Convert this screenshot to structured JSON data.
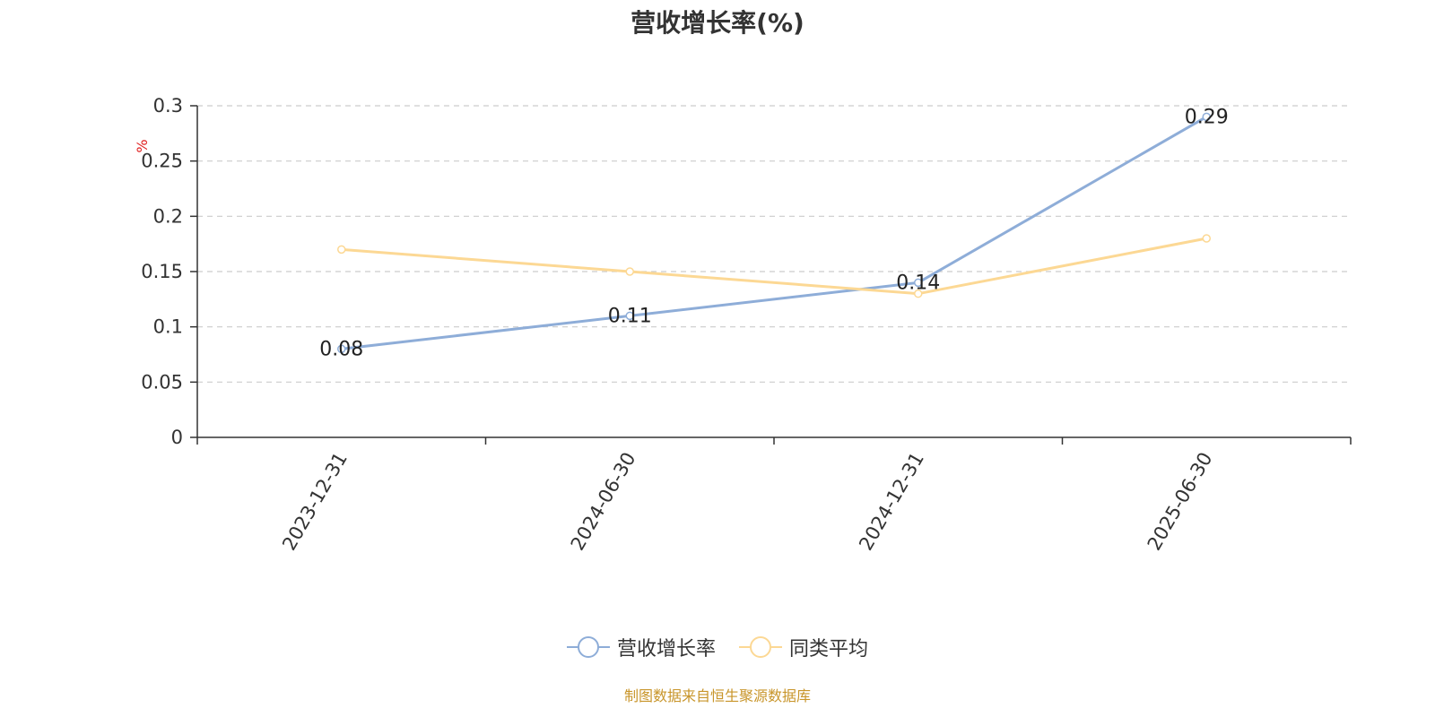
{
  "title": "营收增长率(%)",
  "source": "制图数据来自恒生聚源数据库",
  "chart_data": {
    "type": "line",
    "title": "营收增长率(%)",
    "ylabel": "%",
    "categories": [
      "2023-12-31",
      "2024-06-30",
      "2024-12-31",
      "2025-06-30"
    ],
    "ylim": [
      0,
      0.3
    ],
    "yticks": [
      "0",
      "0.05",
      "0.1",
      "0.15",
      "0.2",
      "0.25",
      "0.3"
    ],
    "grid": true,
    "legend_position": "bottom",
    "series": [
      {
        "name": "营收增长率",
        "values": [
          0.08,
          0.11,
          0.14,
          0.29
        ],
        "color": "#8eadd8",
        "labels": [
          "0.08",
          "0.11",
          "0.14",
          "0.29"
        ]
      },
      {
        "name": "同类平均",
        "values": [
          0.17,
          0.15,
          0.13,
          0.18
        ],
        "color": "#fcd894"
      }
    ]
  }
}
